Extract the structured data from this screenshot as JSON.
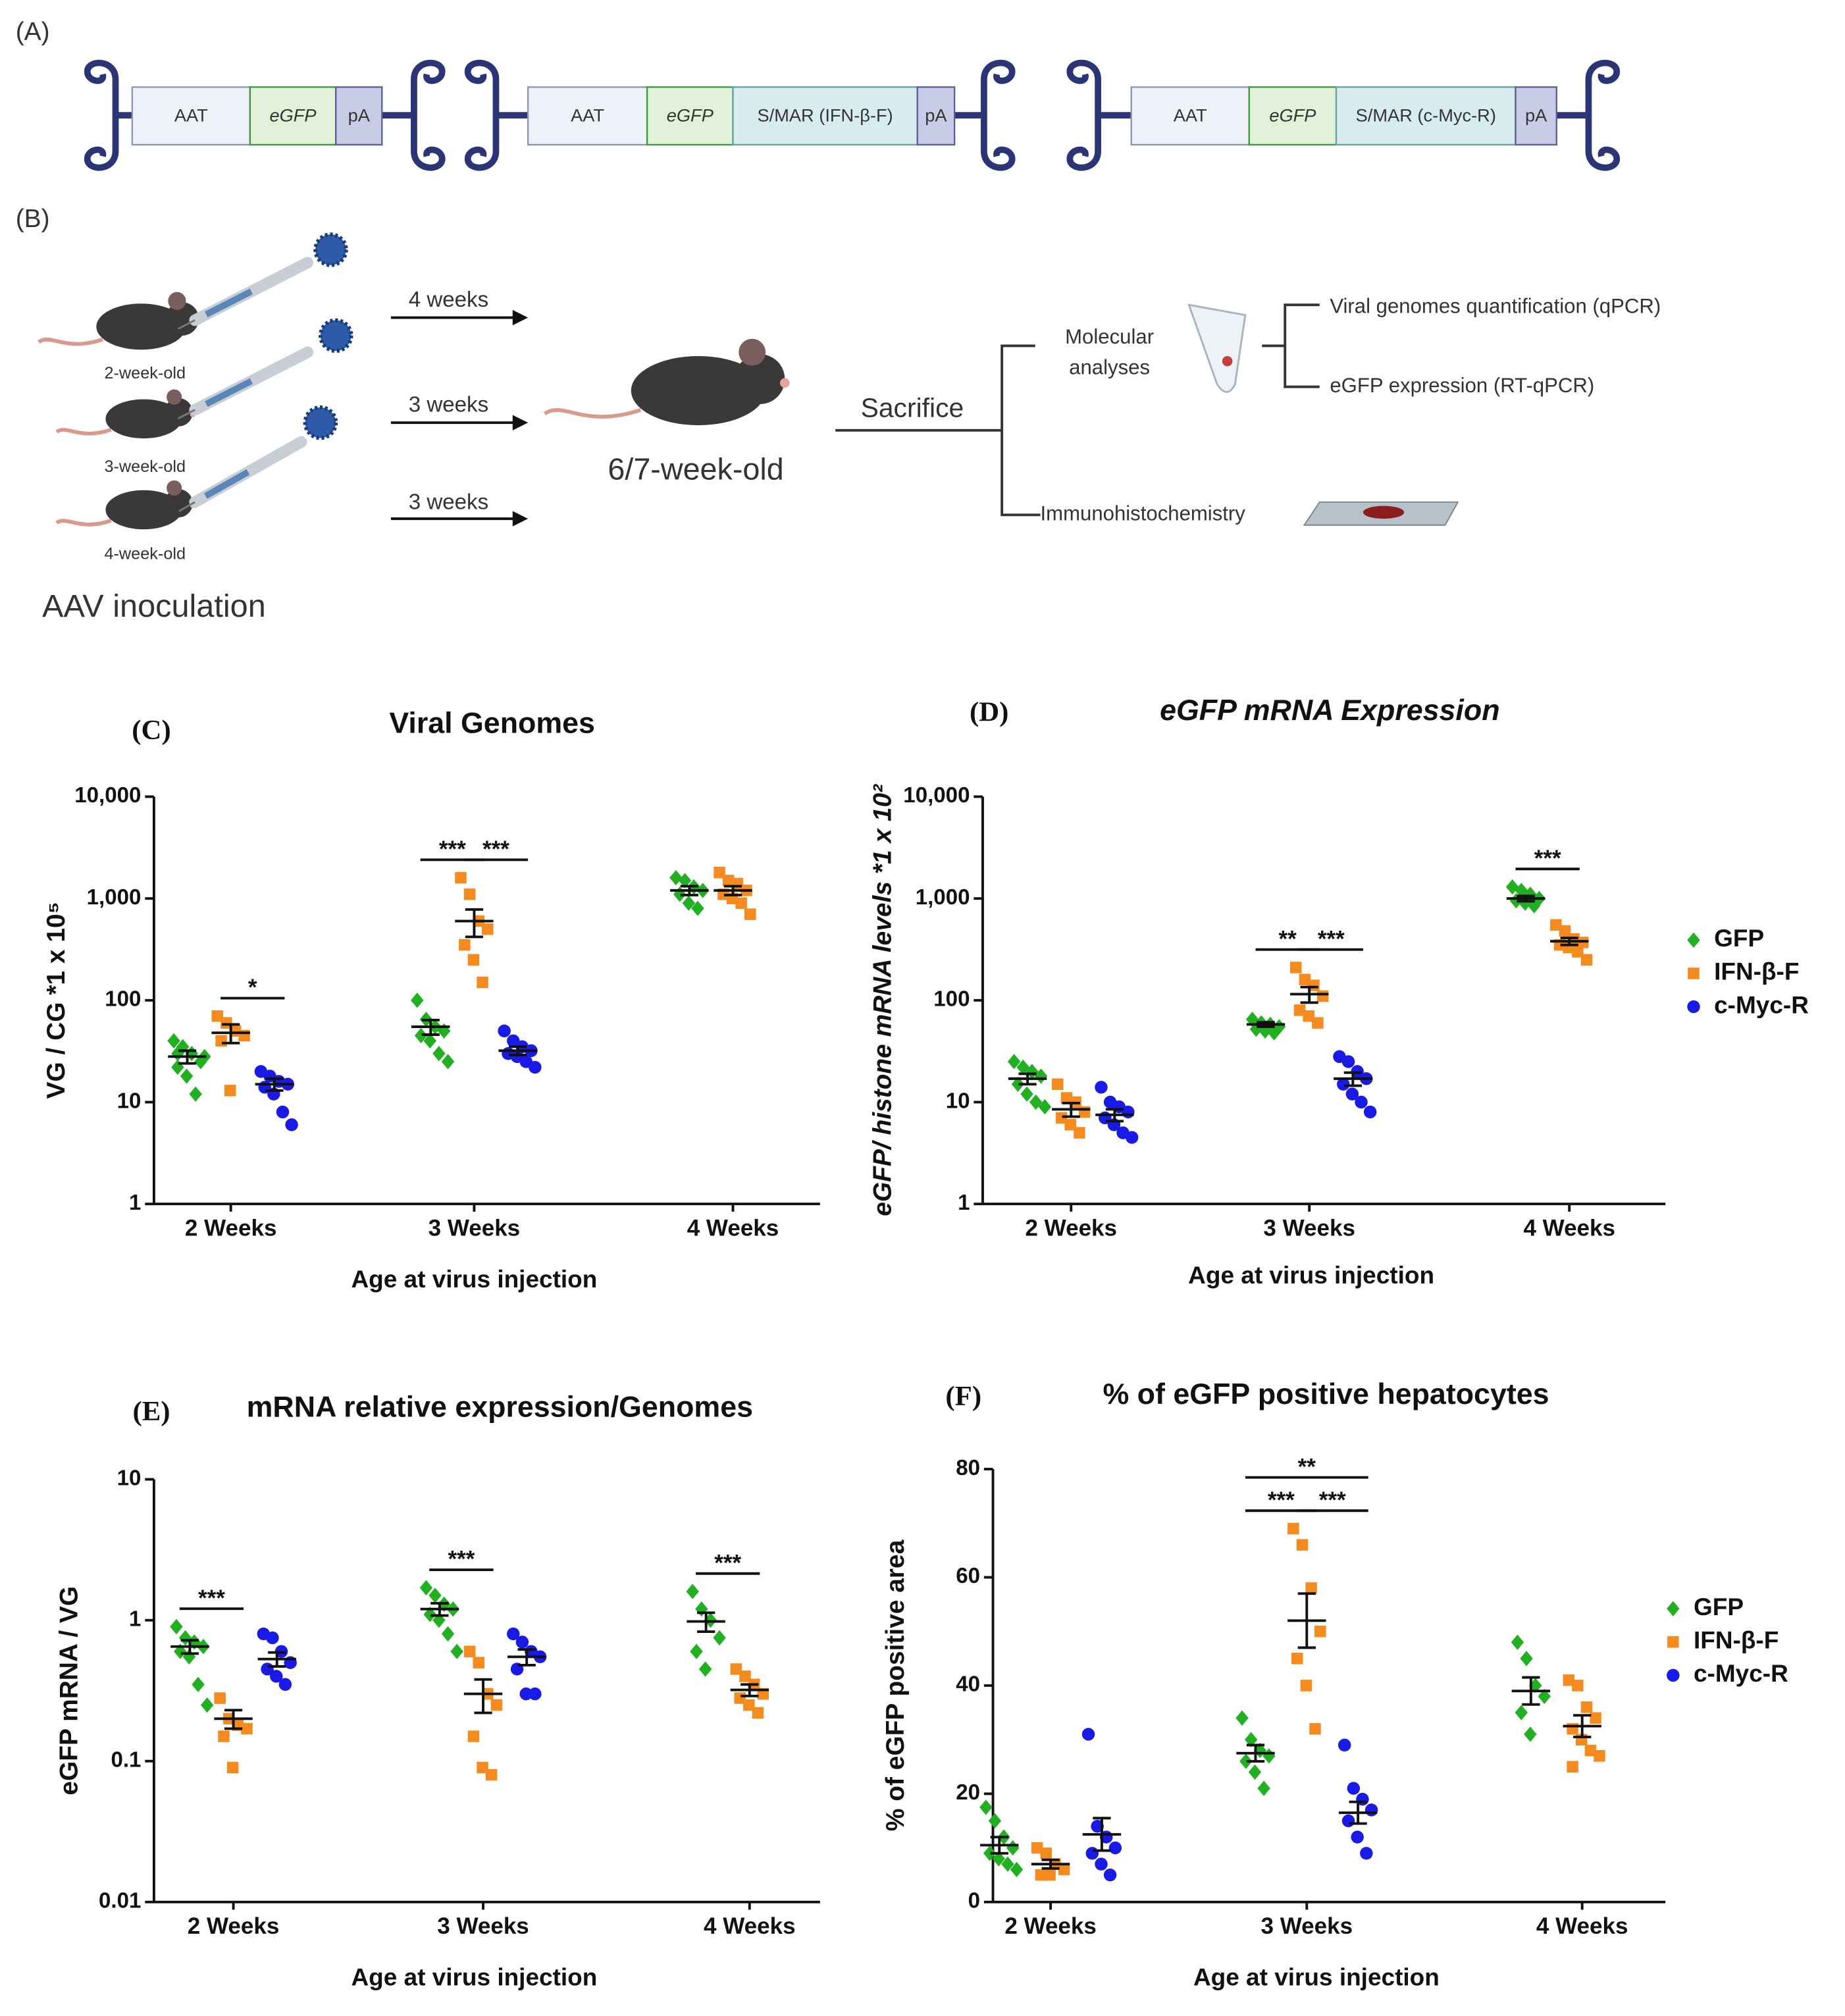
{
  "panel_a": {
    "label": "(A)",
    "constructs": [
      [
        "AAT",
        "eGFP",
        "pA"
      ],
      [
        "AAT",
        "eGFP",
        "S/MAR (IFN-β-F)",
        "pA"
      ],
      [
        "AAT",
        "eGFP",
        "S/MAR (c-Myc-R)",
        "pA"
      ]
    ]
  },
  "panel_b": {
    "label": "(B)",
    "mice": [
      "2-week-old",
      "3-week-old",
      "4-week-old"
    ],
    "inoculation": "AAV inoculation",
    "intervals": [
      "4 weeks",
      "3 weeks",
      "3 weeks"
    ],
    "endpoint": "6/7-week-old",
    "sacrifice": "Sacrifice",
    "molecular": [
      "Molecular",
      "analyses"
    ],
    "analyses": [
      "Viral genomes quantification (qPCR)",
      "eGFP expression (RT-qPCR)"
    ],
    "ihc": "Immunohistochemistry"
  },
  "chart_data": [
    {
      "type": "dot",
      "panel": "(C)",
      "title": "Viral Genomes",
      "xlabel": "Age at virus injection",
      "ylabel": "VG / CG *1 x 10⁵",
      "log": true,
      "ylim": [
        1,
        10000
      ],
      "yticks": [
        {
          "value": 10000,
          "label": "10,000"
        },
        {
          "value": 1000,
          "label": "1,000"
        },
        100,
        10,
        1
      ],
      "categories": [
        "2 Weeks",
        "3 Weeks",
        "4 Weeks"
      ],
      "series": [
        {
          "color": "#22b022",
          "marker": "diamond",
          "values": [
            [
              40,
              35,
              30,
              25,
              22,
              18,
              12,
              28,
              30
            ],
            [
              100,
              65,
              55,
              50,
              45,
              40,
              30,
              25
            ],
            [
              1600,
              1500,
              1300,
              1200,
              1100,
              900,
              800
            ]
          ],
          "mean": [
            28,
            55,
            1200
          ],
          "sem": [
            4,
            9,
            120
          ]
        },
        {
          "color": "#f58a1f",
          "marker": "square",
          "values": [
            [
              70,
              60,
              50,
              45,
              40,
              13
            ],
            [
              1600,
              1100,
              600,
              500,
              350,
              250,
              150
            ],
            [
              1800,
              1500,
              1400,
              1200,
              1100,
              1000,
              900,
              700
            ]
          ],
          "mean": [
            48,
            600,
            1200
          ],
          "sem": [
            10,
            180,
            120
          ]
        },
        {
          "color": "#1a1ae6",
          "marker": "circle",
          "values": [
            [
              20,
              18,
              16,
              15,
              14,
              12,
              8,
              6
            ],
            [
              50,
              40,
              35,
              32,
              30,
              28,
              25,
              22
            ],
            null
          ],
          "mean": [
            15,
            32,
            null
          ],
          "sem": [
            2,
            3,
            null
          ]
        }
      ],
      "annotations": [
        {
          "text": "*",
          "category": 0,
          "between": [
            1,
            2
          ]
        },
        {
          "text": "***",
          "category": 1,
          "between": [
            0,
            1
          ]
        },
        {
          "text": "***",
          "category": 1,
          "between": [
            1,
            2
          ]
        }
      ]
    },
    {
      "type": "dot",
      "panel": "(D)",
      "title": "eGFP mRNA Expression",
      "xlabel": "Age at virus injection",
      "ylabel": "eGFP/ histone mRNA  levels *1 x 10²",
      "log": true,
      "ylim": [
        1,
        10000
      ],
      "yticks": [
        {
          "value": 10000,
          "label": "10,000"
        },
        {
          "value": 1000,
          "label": "1,000"
        },
        100,
        10,
        1
      ],
      "categories": [
        "2 Weeks",
        "3 Weeks",
        "4 Weeks"
      ],
      "legend": "right",
      "series": [
        {
          "name": "GFP",
          "color": "#22b022",
          "marker": "diamond",
          "values": [
            [
              25,
              22,
              20,
              18,
              15,
              12,
              10,
              9
            ],
            [
              65,
              60,
              58,
              55,
              52,
              50,
              48
            ],
            [
              1300,
              1200,
              1100,
              1000,
              950,
              900,
              850
            ]
          ],
          "mean": [
            17,
            58,
            1000
          ],
          "sem": [
            2,
            3,
            60
          ]
        },
        {
          "name": "IFN-β-F",
          "color": "#f58a1f",
          "marker": "square",
          "values": [
            [
              15,
              11,
              10,
              8,
              7,
              6,
              5
            ],
            [
              210,
              160,
              140,
              110,
              80,
              70,
              60
            ],
            [
              550,
              480,
              400,
              370,
              350,
              330,
              300,
              250
            ]
          ],
          "mean": [
            8.5,
            115,
            380
          ],
          "sem": [
            1.3,
            20,
            30
          ]
        },
        {
          "name": "c-Myc-R",
          "color": "#1a1ae6",
          "marker": "circle",
          "values": [
            [
              14,
              10,
              9,
              8,
              7,
              6,
              5,
              4.5
            ],
            [
              28,
              25,
              20,
              17,
              15,
              12,
              10,
              8
            ],
            null
          ],
          "mean": [
            7.5,
            17,
            null
          ],
          "sem": [
            1,
            2.5,
            null
          ]
        }
      ],
      "annotations": [
        {
          "text": "**",
          "category": 1,
          "between": [
            0,
            1
          ]
        },
        {
          "text": "***",
          "category": 1,
          "between": [
            1,
            2
          ]
        },
        {
          "text": "***",
          "category": 2,
          "between": [
            0,
            1
          ]
        }
      ]
    },
    {
      "type": "dot",
      "panel": "(E)",
      "title": "mRNA relative expression/Genomes",
      "xlabel": "Age at virus injection",
      "ylabel": "eGFP mRNA  / VG",
      "log": true,
      "ylim": [
        0.01,
        10
      ],
      "yticks": [
        10,
        1,
        0.1,
        0.01
      ],
      "categories": [
        "2 Weeks",
        "3 Weeks",
        "4 Weeks"
      ],
      "series": [
        {
          "color": "#22b022",
          "marker": "diamond",
          "values": [
            [
              0.9,
              0.75,
              0.7,
              0.65,
              0.6,
              0.55,
              0.35,
              0.25
            ],
            [
              1.7,
              1.5,
              1.3,
              1.2,
              1.1,
              1.0,
              0.8,
              0.6
            ],
            [
              1.6,
              1.2,
              1.0,
              0.75,
              0.6,
              0.45
            ]
          ],
          "mean": [
            0.65,
            1.2,
            0.98
          ],
          "sem": [
            0.07,
            0.12,
            0.15
          ]
        },
        {
          "color": "#f58a1f",
          "marker": "square",
          "values": [
            [
              0.28,
              0.2,
              0.18,
              0.17,
              0.15,
              0.09
            ],
            [
              0.6,
              0.5,
              0.3,
              0.25,
              0.15,
              0.09,
              0.08
            ],
            [
              0.45,
              0.4,
              0.35,
              0.3,
              0.28,
              0.25,
              0.22
            ]
          ],
          "mean": [
            0.2,
            0.3,
            0.32
          ],
          "sem": [
            0.03,
            0.08,
            0.03
          ]
        },
        {
          "color": "#1a1ae6",
          "marker": "circle",
          "values": [
            [
              0.8,
              0.75,
              0.6,
              0.5,
              0.45,
              0.4,
              0.35
            ],
            [
              0.8,
              0.7,
              0.6,
              0.55,
              0.45,
              0.3,
              0.3
            ],
            null
          ],
          "mean": [
            0.53,
            0.55,
            null
          ],
          "sem": [
            0.06,
            0.07,
            null
          ]
        }
      ],
      "annotations": [
        {
          "text": "***",
          "category": 0,
          "between": [
            0,
            1
          ]
        },
        {
          "text": "***",
          "category": 1,
          "between": [
            0,
            1
          ]
        },
        {
          "text": "***",
          "category": 2,
          "between": [
            0,
            1
          ]
        }
      ]
    },
    {
      "type": "dot",
      "panel": "(F)",
      "title": "% of  eGFP positive hepatocytes",
      "xlabel": "Age at virus injection",
      "ylabel": "% of eGFP positive area",
      "log": false,
      "ylim": [
        0,
        80
      ],
      "yticks": [
        0,
        20,
        40,
        60,
        80
      ],
      "categories": [
        "2 Weeks",
        "3 Weeks",
        "4 Weeks"
      ],
      "legend": "right",
      "series": [
        {
          "name": "GFP",
          "color": "#22b022",
          "marker": "diamond",
          "values": [
            [
              17.5,
              15,
              12,
              10,
              9,
              8,
              7,
              6
            ],
            [
              34,
              30,
              28,
              27,
              26,
              24,
              21
            ],
            [
              48,
              45,
              40,
              38,
              35,
              31
            ]
          ],
          "mean": [
            10.5,
            27.5,
            39
          ],
          "sem": [
            1.5,
            1.5,
            2.5
          ]
        },
        {
          "name": "IFN-β-F",
          "color": "#f58a1f",
          "marker": "square",
          "values": [
            [
              10,
              9,
              7,
              6,
              5,
              5
            ],
            [
              69,
              66,
              58,
              50,
              45,
              40,
              32
            ],
            [
              41,
              40,
              36,
              34,
              32,
              30,
              28,
              27,
              25
            ]
          ],
          "mean": [
            7,
            52,
            32.5
          ],
          "sem": [
            0.8,
            5,
            2
          ]
        },
        {
          "name": "c-Myc-R",
          "color": "#1a1ae6",
          "marker": "circle",
          "values": [
            [
              31,
              14,
              12,
              10,
              9,
              7,
              5
            ],
            [
              29,
              21,
              19,
              17,
              15,
              12,
              9
            ],
            null
          ],
          "mean": [
            12.5,
            16.5,
            null
          ],
          "sem": [
            3,
            2,
            null
          ]
        }
      ],
      "annotations": [
        {
          "text": "***",
          "category": 1,
          "between": [
            0,
            1
          ]
        },
        {
          "text": "***",
          "category": 1,
          "between": [
            1,
            2
          ]
        },
        {
          "text": "**",
          "category": 1,
          "between": [
            0,
            2
          ]
        }
      ]
    }
  ]
}
